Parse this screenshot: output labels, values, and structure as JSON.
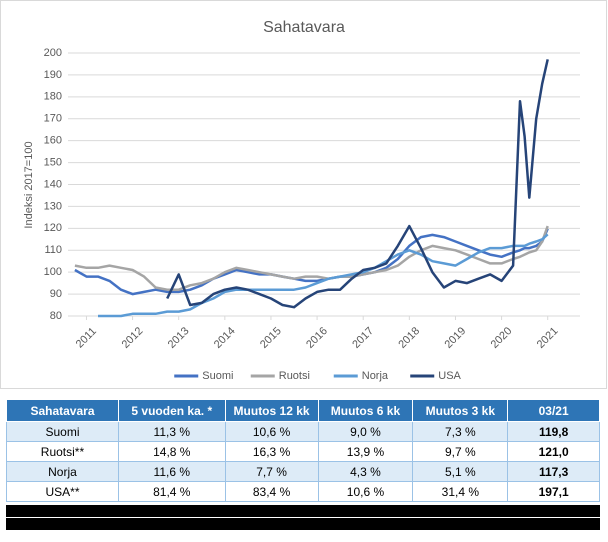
{
  "chart_data": {
    "type": "line",
    "title": "Sahatavara",
    "y_label": "Indeksi 2017=100",
    "x": [
      2010.75,
      2011.0,
      2011.25,
      2011.5,
      2011.75,
      2012.0,
      2012.25,
      2012.5,
      2012.75,
      2013.0,
      2013.25,
      2013.5,
      2013.75,
      2014.0,
      2014.25,
      2014.5,
      2014.75,
      2015.0,
      2015.25,
      2015.5,
      2015.75,
      2016.0,
      2016.25,
      2016.5,
      2016.75,
      2017.0,
      2017.25,
      2017.5,
      2017.75,
      2018.0,
      2018.25,
      2018.5,
      2018.75,
      2019.0,
      2019.25,
      2019.5,
      2019.75,
      2020.0,
      2020.25,
      2020.4,
      2020.5,
      2020.6,
      2020.75,
      2020.88,
      2021.0
    ],
    "series": [
      {
        "name": "Suomi",
        "color": "#4472c4",
        "values": [
          101,
          98,
          98,
          96,
          92,
          90,
          91,
          92,
          91,
          91,
          92,
          94,
          97,
          99,
          101,
          100,
          99,
          99,
          98,
          97,
          96,
          96,
          97,
          98,
          98,
          99,
          100,
          102,
          106,
          112,
          116,
          117,
          116,
          114,
          112,
          110,
          108,
          107,
          109,
          110,
          111,
          111,
          112,
          114,
          119.8
        ]
      },
      {
        "name": "Ruotsi",
        "color": "#a5a5a5",
        "values": [
          103,
          102,
          102,
          103,
          102,
          101,
          98,
          93,
          92,
          92,
          94,
          95,
          97,
          100,
          102,
          101,
          100,
          99,
          98,
          97,
          98,
          98,
          97,
          98,
          98,
          99,
          100,
          101,
          103,
          107,
          110,
          112,
          111,
          110,
          108,
          106,
          104,
          104,
          106,
          107,
          108,
          109,
          110,
          114,
          121
        ]
      },
      {
        "name": "Norja",
        "color": "#5b9bd5",
        "values": [
          null,
          null,
          80,
          80,
          80,
          81,
          81,
          81,
          82,
          82,
          83,
          86,
          88,
          91,
          92,
          92,
          92,
          92,
          92,
          92,
          93,
          95,
          97,
          98,
          99,
          100,
          102,
          105,
          108,
          110,
          108,
          105,
          104,
          103,
          106,
          109,
          111,
          111,
          112,
          112,
          112,
          113,
          114,
          115,
          117.3
        ]
      },
      {
        "name": "USA",
        "color": "#264478",
        "values": [
          null,
          null,
          null,
          null,
          null,
          null,
          null,
          null,
          88,
          99,
          85,
          86,
          90,
          92,
          93,
          92,
          90,
          88,
          85,
          84,
          88,
          91,
          92,
          92,
          97,
          101,
          102,
          104,
          112,
          121,
          111,
          100,
          93,
          96,
          95,
          97,
          99,
          96,
          103,
          178,
          162,
          134,
          170,
          186,
          197.1
        ]
      }
    ],
    "xlim": [
      2010.6,
      2021.7
    ],
    "xticks": [
      2011,
      2012,
      2013,
      2014,
      2015,
      2016,
      2017,
      2018,
      2019,
      2020,
      2021
    ],
    "ylim": [
      80,
      200
    ],
    "yticks": [
      80,
      90,
      100,
      110,
      120,
      130,
      140,
      150,
      160,
      170,
      180,
      190,
      200
    ],
    "grid": true,
    "legend": "bottom"
  },
  "table": {
    "header": [
      "Sahatavara",
      "5 vuoden ka. *",
      "Muutos 12 kk",
      "Muutos 6 kk",
      "Muutos 3 kk",
      "03/21"
    ],
    "rows": [
      [
        "Suomi",
        "11,3 %",
        "10,6 %",
        "9,0 %",
        "7,3 %",
        "119,8"
      ],
      [
        "Ruotsi**",
        "14,8 %",
        "16,3 %",
        "13,9 %",
        "9,7 %",
        "121,0"
      ],
      [
        "Norja",
        "11,6 %",
        "7,7 %",
        "4,3 %",
        "5,1 %",
        "117,3"
      ],
      [
        "USA**",
        "81,4 %",
        "83,4 %",
        "10,6 %",
        "31,4 %",
        "197,1"
      ]
    ]
  }
}
